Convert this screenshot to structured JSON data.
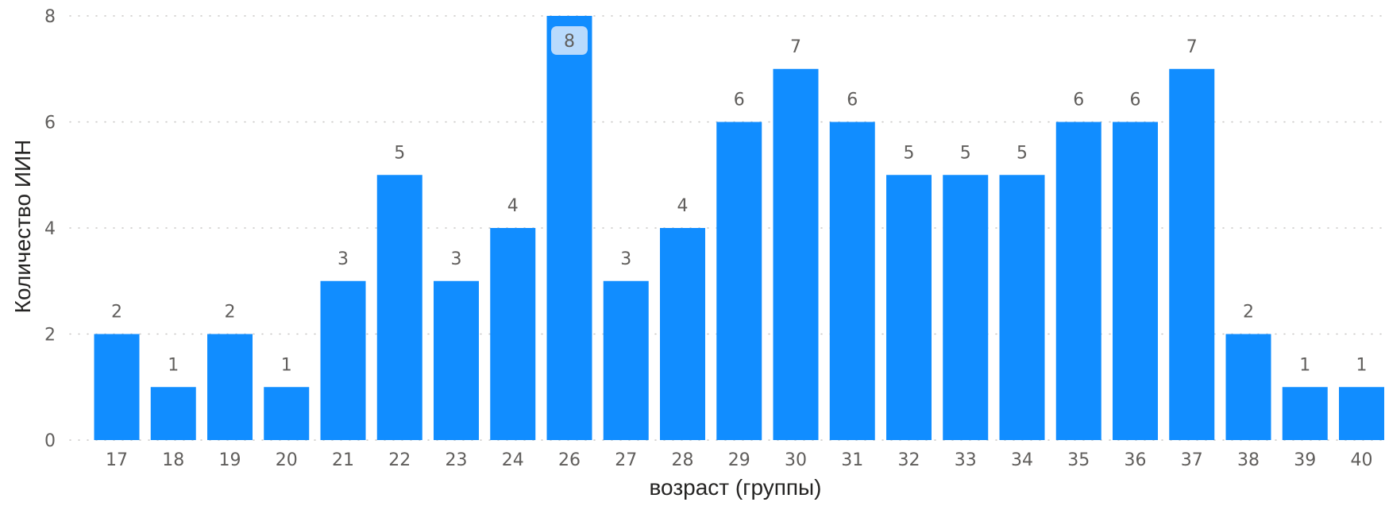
{
  "chart_data": {
    "type": "bar",
    "xlabel": "возраст (группы)",
    "ylabel": "Количество ИИН",
    "categories": [
      "17",
      "18",
      "19",
      "20",
      "21",
      "22",
      "23",
      "24",
      "26",
      "27",
      "28",
      "29",
      "30",
      "31",
      "32",
      "33",
      "34",
      "35",
      "36",
      "37",
      "38",
      "39",
      "40"
    ],
    "values": [
      2,
      1,
      2,
      1,
      3,
      5,
      3,
      4,
      8,
      3,
      4,
      6,
      7,
      6,
      5,
      5,
      5,
      6,
      6,
      7,
      2,
      1,
      1
    ],
    "ylim": [
      0,
      8
    ],
    "yticks": [
      0,
      2,
      4,
      6,
      8
    ],
    "grid": true,
    "data_labels": true,
    "highlighted_category": "26",
    "colors": {
      "bar": "#118dff",
      "highlight_label_bg": "#b9dafc",
      "grid": "#c8c6c4",
      "label_text": "#605e5c"
    }
  }
}
